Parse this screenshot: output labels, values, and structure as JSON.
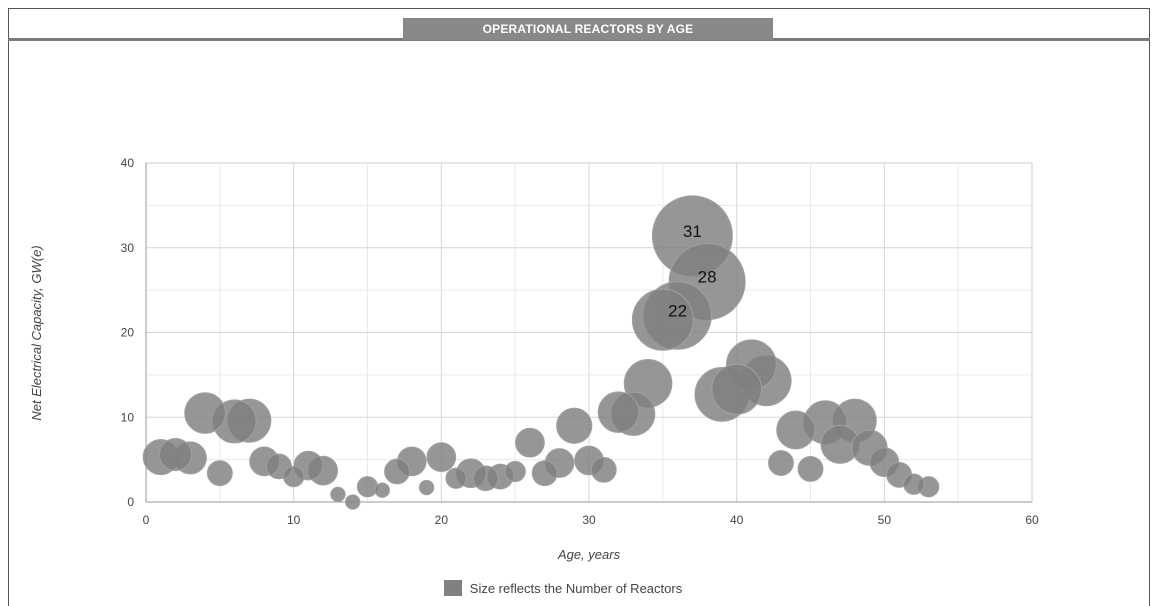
{
  "chart_data": {
    "type": "scatter",
    "title": "OPERATIONAL REACTORS BY AGE",
    "xlabel": "Age, years",
    "ylabel": "Net Electrical Capacity, GW(e)",
    "xlim": [
      0,
      60
    ],
    "ylim": [
      0,
      40
    ],
    "xticks": [
      0,
      10,
      20,
      30,
      40,
      50,
      60
    ],
    "yticks": [
      0,
      10,
      20,
      30,
      40
    ],
    "grid": true,
    "legend": {
      "label": "Size reflects the Number of Reactors",
      "position": "bottom"
    },
    "colors": {
      "bubble_fill": "#7f7f7f",
      "bubble_stroke": "#a0a0a0"
    },
    "points": [
      {
        "x": 1,
        "y": 5.3,
        "n": 6
      },
      {
        "x": 2,
        "y": 5.6,
        "n": 5
      },
      {
        "x": 3,
        "y": 5.2,
        "n": 5
      },
      {
        "x": 4,
        "y": 10.5,
        "n": 8
      },
      {
        "x": 5,
        "y": 3.4,
        "n": 3
      },
      {
        "x": 6,
        "y": 9.5,
        "n": 9
      },
      {
        "x": 7,
        "y": 9.6,
        "n": 9
      },
      {
        "x": 8,
        "y": 4.8,
        "n": 4
      },
      {
        "x": 9,
        "y": 4.2,
        "n": 3
      },
      {
        "x": 10,
        "y": 3.0,
        "n": 2
      },
      {
        "x": 11,
        "y": 4.3,
        "n": 4
      },
      {
        "x": 12,
        "y": 3.7,
        "n": 4
      },
      {
        "x": 13,
        "y": 0.9,
        "n": 1
      },
      {
        "x": 14,
        "y": 0,
        "n": 1
      },
      {
        "x": 15,
        "y": 1.8,
        "n": 2
      },
      {
        "x": 16,
        "y": 1.4,
        "n": 1
      },
      {
        "x": 17,
        "y": 3.6,
        "n": 3
      },
      {
        "x": 18,
        "y": 4.8,
        "n": 4
      },
      {
        "x": 19,
        "y": 1.7,
        "n": 1
      },
      {
        "x": 20,
        "y": 5.3,
        "n": 4
      },
      {
        "x": 21,
        "y": 2.8,
        "n": 2
      },
      {
        "x": 22,
        "y": 3.4,
        "n": 4
      },
      {
        "x": 23,
        "y": 2.8,
        "n": 3
      },
      {
        "x": 24,
        "y": 3.0,
        "n": 3
      },
      {
        "x": 25,
        "y": 3.6,
        "n": 2
      },
      {
        "x": 26,
        "y": 7.0,
        "n": 4
      },
      {
        "x": 27,
        "y": 3.4,
        "n": 3
      },
      {
        "x": 28,
        "y": 4.6,
        "n": 4
      },
      {
        "x": 29,
        "y": 9.0,
        "n": 6
      },
      {
        "x": 30,
        "y": 4.9,
        "n": 4
      },
      {
        "x": 31,
        "y": 3.8,
        "n": 3
      },
      {
        "x": 32,
        "y": 10.6,
        "n": 8
      },
      {
        "x": 33,
        "y": 10.4,
        "n": 9
      },
      {
        "x": 34,
        "y": 14.0,
        "n": 11
      },
      {
        "x": 35,
        "y": 21.5,
        "n": 18
      },
      {
        "x": 36,
        "y": 22.0,
        "n": 22,
        "label": "22"
      },
      {
        "x": 37,
        "y": 31.4,
        "n": 31,
        "label": "31"
      },
      {
        "x": 38,
        "y": 26.0,
        "n": 28,
        "label": "28"
      },
      {
        "x": 39,
        "y": 12.7,
        "n": 14
      },
      {
        "x": 40,
        "y": 13.3,
        "n": 12
      },
      {
        "x": 41,
        "y": 16.2,
        "n": 12
      },
      {
        "x": 42,
        "y": 14.3,
        "n": 12
      },
      {
        "x": 43,
        "y": 4.6,
        "n": 3
      },
      {
        "x": 44,
        "y": 8.5,
        "n": 7
      },
      {
        "x": 45,
        "y": 3.9,
        "n": 3
      },
      {
        "x": 46,
        "y": 9.4,
        "n": 9
      },
      {
        "x": 47,
        "y": 6.8,
        "n": 7
      },
      {
        "x": 48,
        "y": 9.6,
        "n": 9
      },
      {
        "x": 49,
        "y": 6.4,
        "n": 6
      },
      {
        "x": 50,
        "y": 4.7,
        "n": 4
      },
      {
        "x": 51,
        "y": 3.2,
        "n": 3
      },
      {
        "x": 52,
        "y": 2.1,
        "n": 2
      },
      {
        "x": 53,
        "y": 1.8,
        "n": 2
      }
    ]
  }
}
